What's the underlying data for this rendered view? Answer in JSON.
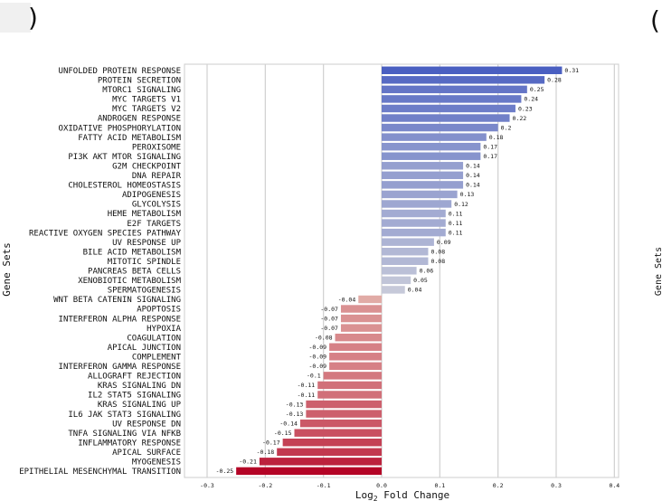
{
  "chart_data": {
    "type": "bar",
    "orientation": "horizontal",
    "xlabel": "Log2 Fold Change",
    "ylabel": "Gene Sets",
    "xlim": [
      -0.3,
      0.4
    ],
    "xticks": [
      -0.3,
      -0.2,
      -0.1,
      0.0,
      0.1,
      0.2,
      0.3,
      0.4
    ],
    "grid": "vertical",
    "colormap": "coolwarm",
    "color_positive": "#4a5fc1",
    "color_negative": "#b40426",
    "categories": [
      "UNFOLDED PROTEIN RESPONSE",
      "PROTEIN SECRETION",
      "MTORC1 SIGNALING",
      "MYC TARGETS V1",
      "MYC TARGETS V2",
      "ANDROGEN RESPONSE",
      "OXIDATIVE PHOSPHORYLATION",
      "FATTY ACID METABOLISM",
      "PEROXISOME",
      "PI3K AKT MTOR SIGNALING",
      "G2M CHECKPOINT",
      "DNA REPAIR",
      "CHOLESTEROL HOMEOSTASIS",
      "ADIPOGENESIS",
      "GLYCOLYSIS",
      "HEME METABOLISM",
      "E2F TARGETS",
      "REACTIVE OXYGEN SPECIES PATHWAY",
      "UV RESPONSE UP",
      "BILE ACID METABOLISM",
      "MITOTIC SPINDLE",
      "PANCREAS BETA CELLS",
      "XENOBIOTIC METABOLISM",
      "SPERMATOGENESIS",
      "WNT BETA CATENIN SIGNALING",
      "APOPTOSIS",
      "INTERFERON ALPHA RESPONSE",
      "HYPOXIA",
      "COAGULATION",
      "APICAL JUNCTION",
      "COMPLEMENT",
      "INTERFERON GAMMA RESPONSE",
      "ALLOGRAFT REJECTION",
      "KRAS SIGNALING DN",
      "IL2 STAT5 SIGNALING",
      "KRAS SIGNALING UP",
      "IL6 JAK STAT3 SIGNALING",
      "UV RESPONSE DN",
      "TNFA SIGNALING VIA NFKB",
      "INFLAMMATORY RESPONSE",
      "APICAL SURFACE",
      "MYOGENESIS",
      "EPITHELIAL MESENCHYMAL TRANSITION"
    ],
    "values": [
      0.31,
      0.28,
      0.25,
      0.24,
      0.23,
      0.22,
      0.2,
      0.18,
      0.17,
      0.17,
      0.14,
      0.14,
      0.14,
      0.13,
      0.12,
      0.11,
      0.11,
      0.11,
      0.09,
      0.08,
      0.08,
      0.06,
      0.05,
      0.04,
      -0.04,
      -0.07,
      -0.07,
      -0.07,
      -0.08,
      -0.09,
      -0.09,
      -0.09,
      -0.1,
      -0.11,
      -0.11,
      -0.13,
      -0.13,
      -0.14,
      -0.15,
      -0.17,
      -0.18,
      -0.21,
      -0.25
    ],
    "value_labels": [
      "0.31",
      "0.28",
      "0.25",
      "0.24",
      "0.23",
      "0.22",
      "0.2",
      "0.18",
      "0.17",
      "0.17",
      "0.14",
      "0.14",
      "0.14",
      "0.13",
      "0.12",
      "0.11",
      "0.11",
      "0.11",
      "0.09",
      "0.08",
      "0.08",
      "0.06",
      "0.05",
      "0.04",
      "-0.04",
      "-0.07",
      "-0.07",
      "-0.07",
      "-0.08",
      "-0.09",
      "-0.09",
      "-0.09",
      "-0.1",
      "-0.11",
      "-0.11",
      "-0.13",
      "-0.13",
      "-0.14",
      "-0.15",
      "-0.17",
      "-0.18",
      "-0.21",
      "-0.25"
    ],
    "xtick_labels": [
      "-0.3",
      "-0.2",
      "-0.1",
      "0.0",
      "0.1",
      "0.2",
      "0.3",
      "0.4"
    ],
    "side_fragments": {
      "top_left": ")",
      "top_right": "(",
      "right_ylabel": "Gene Sets"
    }
  }
}
